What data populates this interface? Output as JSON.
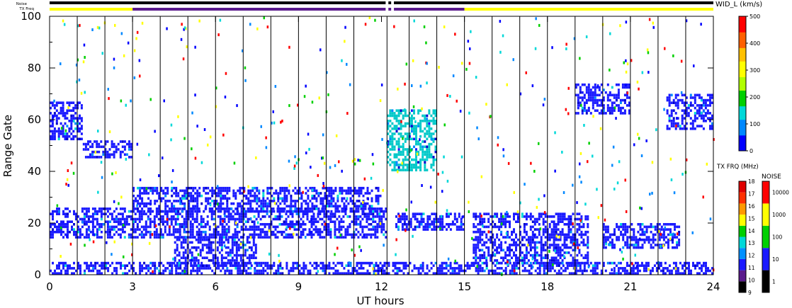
{
  "chart_data": {
    "type": "heatmap",
    "title": "",
    "xlabel": "UT hours",
    "ylabel": "Range Gate",
    "xlim": [
      0,
      24
    ],
    "ylim": [
      0,
      100
    ],
    "x_ticks": [
      "0",
      "3",
      "6",
      "9",
      "12",
      "15",
      "18",
      "21",
      "24"
    ],
    "y_ticks": [
      "0",
      "20",
      "40",
      "60",
      "80",
      "100"
    ],
    "scan_boundaries_hours": [
      1,
      2,
      3,
      4,
      5,
      6,
      7,
      8,
      9,
      10,
      11,
      12.2,
      13,
      14,
      15,
      16,
      17,
      18,
      19,
      20,
      21,
      22,
      23
    ],
    "grid": false,
    "top_bars": {
      "noise_label": "Noise",
      "txfreq_label": "TX Freq",
      "noise_segments": [
        {
          "start": 0,
          "end": 12.15,
          "color": "#000000"
        },
        {
          "start": 12.25,
          "end": 12.35,
          "color": "#000000"
        },
        {
          "start": 12.45,
          "end": 24,
          "color": "#000000"
        }
      ],
      "txfreq_segments": [
        {
          "start": 0,
          "end": 3.0,
          "color": "#ffff00"
        },
        {
          "start": 3.0,
          "end": 12.15,
          "color": "#5a1a8c"
        },
        {
          "start": 12.25,
          "end": 12.35,
          "color": "#5a1a8c"
        },
        {
          "start": 12.45,
          "end": 15.0,
          "color": "#5a1a8c"
        },
        {
          "start": 15.0,
          "end": 24,
          "color": "#ffff00"
        }
      ]
    },
    "scatter_bands": [
      {
        "name": "near-range gates 0-5",
        "x_start": 0,
        "x_end": 24,
        "gate_min": 0,
        "gate_max": 5,
        "color": "#1a1aff"
      },
      {
        "name": "band gate ~20 (0-12 UT)",
        "x_start": 0,
        "x_end": 12.2,
        "gate_min": 14,
        "gate_max": 26,
        "color": "#1a1aff"
      },
      {
        "name": "band gate ~28 (3-12 UT)",
        "x_start": 3,
        "x_end": 12,
        "gate_min": 24,
        "gate_max": 34,
        "color": "#1a1aff"
      },
      {
        "name": "dip band 4.5-7 UT",
        "x_start": 4.5,
        "x_end": 7.5,
        "gate_min": 3,
        "gate_max": 15,
        "color": "#1a1aff"
      },
      {
        "name": "band gate ~20 (12.5-15 UT)",
        "x_start": 12.5,
        "x_end": 15,
        "gate_min": 17,
        "gate_max": 24,
        "color": "#1a1aff"
      },
      {
        "name": "descending band 15-19.5 UT",
        "x_start": 15.3,
        "x_end": 19.5,
        "gate_min": 4,
        "gate_max": 24,
        "color": "#1a1aff"
      },
      {
        "name": "band gate ~15 (20-22.5 UT)",
        "x_start": 20,
        "x_end": 22.8,
        "gate_min": 10,
        "gate_max": 20,
        "color": "#1a1aff"
      },
      {
        "name": "early band gate 55-66 (0-1 UT)",
        "x_start": 0,
        "x_end": 1.2,
        "gate_min": 52,
        "gate_max": 67,
        "color": "#1a1aff"
      },
      {
        "name": "band gate ~48 (1-3 UT)",
        "x_start": 1.2,
        "x_end": 3.0,
        "gate_min": 45,
        "gate_max": 52,
        "color": "#1a1aff"
      },
      {
        "name": "cyan/green cluster 12.2-14 UT",
        "x_start": 12.2,
        "x_end": 14,
        "gate_min": 40,
        "gate_max": 64,
        "color": "#00c8c8"
      },
      {
        "name": "band gate ~62 (22.3-24 UT)",
        "x_start": 22.3,
        "x_end": 24,
        "gate_min": 56,
        "gate_max": 70,
        "color": "#1a1aff"
      },
      {
        "name": "band gate ~68 (19-21 UT)",
        "x_start": 19.0,
        "x_end": 21,
        "gate_min": 62,
        "gate_max": 74,
        "color": "#1a1aff"
      }
    ],
    "colorbar_width": {
      "title": "WID_L (km/s)",
      "ticks": [
        "0",
        "100",
        "200",
        "300",
        "400",
        "500"
      ],
      "range": [
        0,
        500
      ],
      "colors": [
        "#0000ff",
        "#0088ff",
        "#00d8d8",
        "#00d000",
        "#b0ff00",
        "#ffff00",
        "#ffc000",
        "#ff6000",
        "#ff0000"
      ]
    },
    "colorbar_txfreq": {
      "title": "TX FRQ (MHz)",
      "ticks": [
        "9",
        "10",
        "11",
        "12",
        "13",
        "14",
        "15",
        "16",
        "17",
        "18"
      ],
      "colors": [
        "#000000",
        "#5a1a8c",
        "#1a1aff",
        "#0090ff",
        "#00d8d8",
        "#00d000",
        "#ffff00",
        "#ff9900",
        "#ff3000",
        "#e00000"
      ]
    },
    "colorbar_noise": {
      "title": "NOISE",
      "ticks": [
        "1",
        "10",
        "100",
        "1000",
        "10000"
      ],
      "colors": [
        "#000000",
        "#1a1aff",
        "#00d000",
        "#ffff00",
        "#ff0000"
      ]
    }
  }
}
